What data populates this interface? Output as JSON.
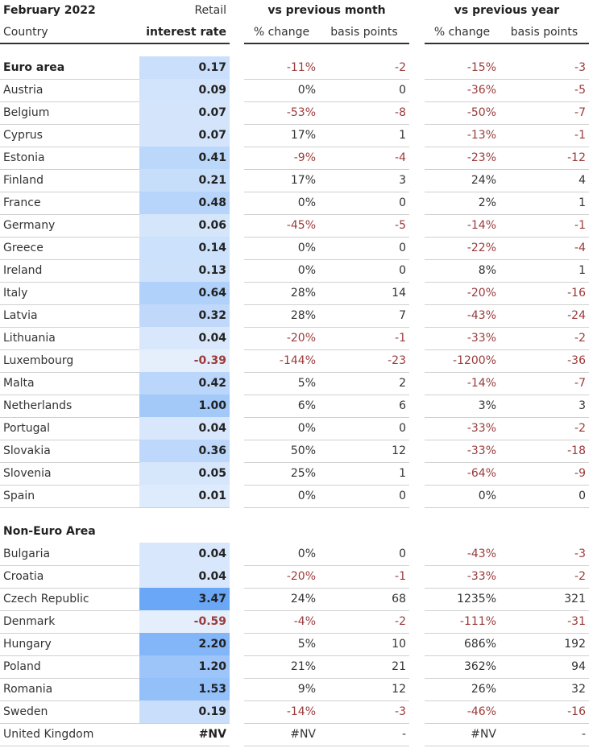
{
  "header": {
    "title": "February 2022",
    "rate_top": "Retail",
    "country": "Country",
    "rate_bottom": "interest rate",
    "group_month": "vs previous month",
    "group_year": "vs previous year",
    "subheaders": [
      "% change",
      "basis points",
      "% change",
      "basis points"
    ]
  },
  "sections": [
    {
      "name": "Euro area",
      "values": [
        "0.17",
        "-11%",
        "-2",
        "-15%",
        "-3"
      ],
      "rows": [
        [
          "Austria",
          "0.09",
          "0%",
          "0",
          "-36%",
          "-5"
        ],
        [
          "Belgium",
          "0.07",
          "-53%",
          "-8",
          "-50%",
          "-7"
        ],
        [
          "Cyprus",
          "0.07",
          "17%",
          "1",
          "-13%",
          "-1"
        ],
        [
          "Estonia",
          "0.41",
          "-9%",
          "-4",
          "-23%",
          "-12"
        ],
        [
          "Finland",
          "0.21",
          "17%",
          "3",
          "24%",
          "4"
        ],
        [
          "France",
          "0.48",
          "0%",
          "0",
          "2%",
          "1"
        ],
        [
          "Germany",
          "0.06",
          "-45%",
          "-5",
          "-14%",
          "-1"
        ],
        [
          "Greece",
          "0.14",
          "0%",
          "0",
          "-22%",
          "-4"
        ],
        [
          "Ireland",
          "0.13",
          "0%",
          "0",
          "8%",
          "1"
        ],
        [
          "Italy",
          "0.64",
          "28%",
          "14",
          "-20%",
          "-16"
        ],
        [
          "Latvia",
          "0.32",
          "28%",
          "7",
          "-43%",
          "-24"
        ],
        [
          "Lithuania",
          "0.04",
          "-20%",
          "-1",
          "-33%",
          "-2"
        ],
        [
          "Luxembourg",
          "-0.39",
          "-144%",
          "-23",
          "-1200%",
          "-36"
        ],
        [
          "Malta",
          "0.42",
          "5%",
          "2",
          "-14%",
          "-7"
        ],
        [
          "Netherlands",
          "1.00",
          "6%",
          "6",
          "3%",
          "3"
        ],
        [
          "Portugal",
          "0.04",
          "0%",
          "0",
          "-33%",
          "-2"
        ],
        [
          "Slovakia",
          "0.36",
          "50%",
          "12",
          "-33%",
          "-18"
        ],
        [
          "Slovenia",
          "0.05",
          "25%",
          "1",
          "-64%",
          "-9"
        ],
        [
          "Spain",
          "0.01",
          "0%",
          "0",
          "0%",
          "0"
        ]
      ]
    },
    {
      "name": "Non-Euro Area",
      "rows": [
        [
          "Bulgaria",
          "0.04",
          "0%",
          "0",
          "-43%",
          "-3"
        ],
        [
          "Croatia",
          "0.04",
          "-20%",
          "-1",
          "-33%",
          "-2"
        ],
        [
          "Czech Republic",
          "3.47",
          "24%",
          "68",
          "1235%",
          "321"
        ],
        [
          "Denmark",
          "-0.59",
          "-4%",
          "-2",
          "-111%",
          "-31"
        ],
        [
          "Hungary",
          "2.20",
          "5%",
          "10",
          "686%",
          "192"
        ],
        [
          "Poland",
          "1.20",
          "21%",
          "21",
          "362%",
          "94"
        ],
        [
          "Romania",
          "1.53",
          "9%",
          "12",
          "26%",
          "32"
        ],
        [
          "Sweden",
          "0.19",
          "-14%",
          "-3",
          "-46%",
          "-16"
        ],
        [
          "United Kingdom",
          "#NV",
          "#NV",
          "-",
          "#NV",
          "-"
        ]
      ]
    }
  ]
}
